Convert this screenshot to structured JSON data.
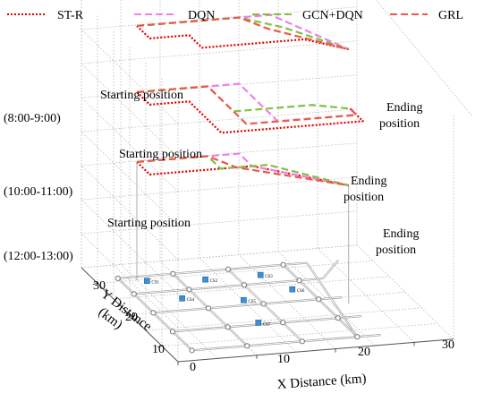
{
  "chart_data": {
    "type": "line",
    "legend": {
      "placement": "top",
      "entries": [
        {
          "name": "ST-R",
          "color": "#e00000",
          "dash": "dotted"
        },
        {
          "name": "DQN",
          "color": "#f27ee8",
          "dash": "dashed"
        },
        {
          "name": "GCN+DQN",
          "color": "#7fc241",
          "dash": "dashed"
        },
        {
          "name": "GRL",
          "color": "#e95a48",
          "dash": "dashed"
        }
      ]
    },
    "xlabel": "X Distance (km)",
    "ylabel": "Y Distance\n(km)",
    "x_ticks": [
      "0",
      "10",
      "20",
      "30"
    ],
    "y_ticks": [
      "10",
      "20",
      "30"
    ],
    "xlim": [
      0,
      35
    ],
    "ylim": [
      5,
      35
    ],
    "time_levels": [
      "(12:00-13:00)",
      "(10:00-11:00)",
      "(8:00-9:00)"
    ],
    "annotations": {
      "start": "Starting position",
      "end_line1": "Ending",
      "end_line2": "position"
    },
    "grid": true,
    "series": [
      {
        "name": "ST-R",
        "paths": [
          [
            [
              5,
              30,
              0
            ],
            [
              5,
              26,
              0
            ],
            [
              18,
              26,
              0
            ],
            [
              27,
              18,
              0
            ]
          ],
          [
            [
              5,
              30,
              1
            ],
            [
              5,
              26,
              1
            ],
            [
              10,
              26,
              1
            ],
            [
              10,
              16,
              1
            ],
            [
              28,
              16,
              1
            ],
            [
              28,
              20,
              1
            ]
          ],
          [
            [
              5,
              30,
              2
            ],
            [
              5,
              26,
              2
            ],
            [
              10,
              26,
              2
            ],
            [
              10,
              22,
              2
            ],
            [
              23,
              22,
              2
            ],
            [
              27,
              18,
              2
            ]
          ]
        ]
      },
      {
        "name": "DQN",
        "paths": [
          [
            [
              5,
              30,
              0
            ],
            [
              18,
              30,
              0
            ],
            [
              18,
              26,
              0
            ],
            [
              27,
              18,
              0
            ]
          ],
          [
            [
              5,
              30,
              1
            ],
            [
              18,
              30,
              1
            ],
            [
              18,
              18,
              1
            ],
            [
              28,
              18,
              1
            ],
            [
              28,
              20,
              1
            ]
          ],
          [
            [
              5,
              30,
              2
            ],
            [
              22,
              30,
              2
            ],
            [
              27,
              18,
              2
            ]
          ]
        ]
      },
      {
        "name": "GCN+DQN",
        "paths": [
          [
            [
              5,
              30,
              0
            ],
            [
              14,
              30,
              0
            ],
            [
              14,
              26,
              0
            ],
            [
              20,
              26,
              0
            ],
            [
              27,
              18,
              0
            ]
          ],
          [
            [
              5,
              30,
              1
            ],
            [
              14,
              30,
              1
            ],
            [
              14,
              22,
              1
            ],
            [
              24,
              22,
              1
            ],
            [
              28,
              20,
              1
            ]
          ],
          [
            [
              5,
              30,
              2
            ],
            [
              18,
              30,
              2
            ],
            [
              22,
              26,
              2
            ],
            [
              27,
              18,
              2
            ]
          ]
        ]
      },
      {
        "name": "GRL",
        "paths": [
          [
            [
              5,
              30,
              0
            ],
            [
              14,
              30,
              0
            ],
            [
              16,
              26,
              0
            ],
            [
              27,
              18,
              0
            ]
          ],
          [
            [
              5,
              30,
              1
            ],
            [
              14,
              30,
              1
            ],
            [
              14,
              18,
              1
            ],
            [
              28,
              18,
              1
            ],
            [
              28,
              20,
              1
            ]
          ],
          [
            [
              5,
              30,
              2
            ],
            [
              18,
              30,
              2
            ],
            [
              20,
              26,
              2
            ],
            [
              27,
              18,
              2
            ]
          ]
        ]
      }
    ],
    "stations": [
      "CS1",
      "CS2",
      "CS3",
      "CS4",
      "CS5",
      "CS6",
      "CS7"
    ]
  }
}
